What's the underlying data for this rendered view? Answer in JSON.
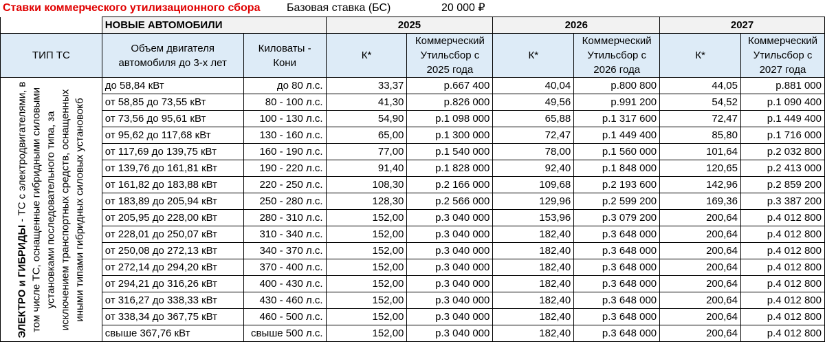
{
  "title": "Ставки коммерческого утилизационного сбора",
  "base_rate": {
    "label": "Базовая ставка (БС)",
    "value": "20 000 ₽"
  },
  "section_label": "НОВЫЕ АВТОМОБИЛИ",
  "years": [
    "2025",
    "2026",
    "2027"
  ],
  "headers": {
    "type": "ТИП ТС",
    "engine": "Объем двигателя автомобиля до 3-х лет",
    "power": "Киловаты - Кони",
    "k": "К*",
    "fee_2025": "Коммерческий Утильсбор с 2025 года",
    "fee_2026": "Коммерческий Утильсбор с 2026 года",
    "fee_2027": "Коммерческий Утильсбор с 2027 года"
  },
  "vehicle_type": {
    "bold": "ЭЛЕКТРО и ГИБРИДЫ",
    "text": " - ТС с электродвигателями, в том числе ТС, оснащенные гибридными силовыми установками последовательного типа, за исключением транспортных средств, оснащенных иными типами гибридных силовых установокб"
  },
  "rows": [
    {
      "engine": "до 58,84 кВт",
      "power": "до 80 л.с.",
      "k2025": "33,37",
      "fee2025": "р.667 400",
      "k2026": "40,04",
      "fee2026": "р.800 800",
      "k2027": "44,05",
      "fee2027": "р.881 000"
    },
    {
      "engine": "от 58,85 до 73,55 кВт",
      "power": "80 - 100 л.с.",
      "k2025": "41,30",
      "fee2025": "р.826 000",
      "k2026": "49,56",
      "fee2026": "р.991 200",
      "k2027": "54,52",
      "fee2027": "р.1 090 400"
    },
    {
      "engine": "от 73,56 до 95,61 кВт",
      "power": "100 - 130 л.с.",
      "k2025": "54,90",
      "fee2025": "р.1 098 000",
      "k2026": "65,88",
      "fee2026": "р.1 317 600",
      "k2027": "72,47",
      "fee2027": "р.1 449 400"
    },
    {
      "engine": "от 95,62 до 117,68 кВт",
      "power": "130 - 160 л.с.",
      "k2025": "65,00",
      "fee2025": "р.1 300 000",
      "k2026": "72,47",
      "fee2026": "р.1 449 400",
      "k2027": "85,80",
      "fee2027": "р.1 716 000"
    },
    {
      "engine": "от 117,69 до 139,75 кВт",
      "power": "160 - 190 л.с.",
      "k2025": "77,00",
      "fee2025": "р.1 540 000",
      "k2026": "78,00",
      "fee2026": "р.1 560 000",
      "k2027": "101,64",
      "fee2027": "р.2 032 800"
    },
    {
      "engine": "от 139,76 до 161,81 кВт",
      "power": "190 - 220 л.с.",
      "k2025": "91,40",
      "fee2025": "р.1 828 000",
      "k2026": "92,40",
      "fee2026": "р.1 848 000",
      "k2027": "120,65",
      "fee2027": "р.2 413 000"
    },
    {
      "engine": "от 161,82 до 183,88 кВт",
      "power": "220 - 250 л.с.",
      "k2025": "108,30",
      "fee2025": "р.2 166 000",
      "k2026": "109,68",
      "fee2026": "р.2 193 600",
      "k2027": "142,96",
      "fee2027": "р.2 859 200"
    },
    {
      "engine": "от 183,89 до 205,94 кВт",
      "power": "250 - 280 л.с.",
      "k2025": "128,30",
      "fee2025": "р.2 566 000",
      "k2026": "129,96",
      "fee2026": "р.2 599 200",
      "k2027": "169,36",
      "fee2027": "р.3 387 200"
    },
    {
      "engine": "от 205,95 до 228,00 кВт",
      "power": "280 - 310 л.с.",
      "k2025": "152,00",
      "fee2025": "р.3 040 000",
      "k2026": "153,96",
      "fee2026": "р.3 079 200",
      "k2027": "200,64",
      "fee2027": "р.4 012 800"
    },
    {
      "engine": "от 228,01 до 250,07 кВт",
      "power": "310 - 340 л.с.",
      "k2025": "152,00",
      "fee2025": "р.3 040 000",
      "k2026": "182,40",
      "fee2026": "р.3 648 000",
      "k2027": "200,64",
      "fee2027": "р.4 012 800"
    },
    {
      "engine": "от 250,08 до 272,13 кВт",
      "power": "340 - 370 л.с.",
      "k2025": "152,00",
      "fee2025": "р.3 040 000",
      "k2026": "182,40",
      "fee2026": "р.3 648 000",
      "k2027": "200,64",
      "fee2027": "р.4 012 800"
    },
    {
      "engine": "от 272,14 до 294,20 кВт",
      "power": "370 - 400 л.с.",
      "k2025": "152,00",
      "fee2025": "р.3 040 000",
      "k2026": "182,40",
      "fee2026": "р.3 648 000",
      "k2027": "200,64",
      "fee2027": "р.4 012 800"
    },
    {
      "engine": "от 294,21 до 316,26 кВт",
      "power": "400 - 430 л.с.",
      "k2025": "152,00",
      "fee2025": "р.3 040 000",
      "k2026": "182,40",
      "fee2026": "р.3 648 000",
      "k2027": "200,64",
      "fee2027": "р.4 012 800"
    },
    {
      "engine": "от 316,27 до 338,33 кВт",
      "power": "430 - 460 л.с.",
      "k2025": "152,00",
      "fee2025": "р.3 040 000",
      "k2026": "182,40",
      "fee2026": "р.3 648 000",
      "k2027": "200,64",
      "fee2027": "р.4 012 800"
    },
    {
      "engine": "от 338,34 до 367,75 кВт",
      "power": "460 - 500 л.с.",
      "k2025": "152,00",
      "fee2025": "р.3 040 000",
      "k2026": "182,40",
      "fee2026": "р.3 648 000",
      "k2027": "200,64",
      "fee2027": "р.4 012 800"
    },
    {
      "engine": "свыше 367,76 кВт",
      "power": "свыше 500 л.с.",
      "k2025": "152,00",
      "fee2025": "р.3 040 000",
      "k2026": "182,40",
      "fee2026": "р.3 648 000",
      "k2027": "200,64",
      "fee2027": "р.4 012 800"
    }
  ]
}
